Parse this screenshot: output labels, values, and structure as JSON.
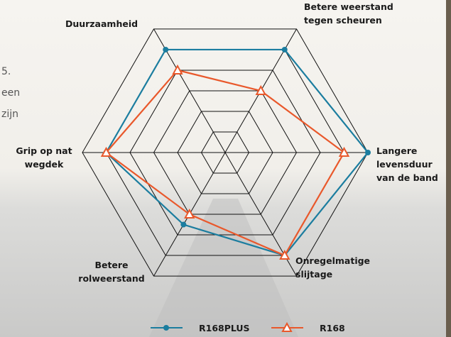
{
  "background_text": [
    "5.",
    "een",
    "zijn"
  ],
  "chart_data": {
    "type": "radar",
    "categories": [
      "Duurzaamheid",
      "Betere weerstand\ntegen scheuren",
      "Langere\nlevensduur\nvan de band",
      "Onregelmatige\nslijtage",
      "Betere\nrolweerstand",
      "Grip op nat\nwegdek"
    ],
    "rlim": [
      0,
      6
    ],
    "rticks": [
      1,
      2,
      3,
      4,
      5,
      6
    ],
    "grid": true,
    "series": [
      {
        "name": "R168PLUS",
        "color": "#1b7d9f",
        "marker": "circle",
        "values": [
          5,
          5,
          6,
          5,
          3.5,
          5
        ]
      },
      {
        "name": "R168",
        "color": "#e9582b",
        "marker": "triangle",
        "values": [
          4,
          3,
          5,
          5,
          3,
          5
        ]
      }
    ]
  }
}
